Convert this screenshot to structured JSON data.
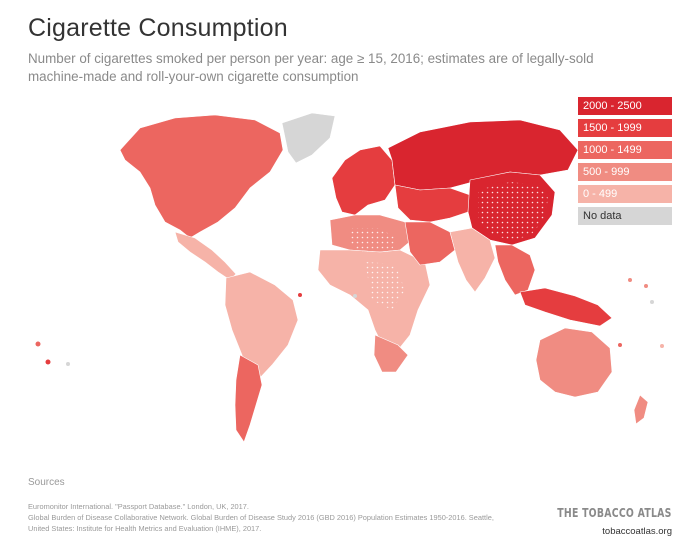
{
  "header": {
    "title": "Cigarette Consumption",
    "subtitle": "Number of cigarettes smoked per person per year: age ≥ 15, 2016; estimates are of legally-sold machine-made and roll-your-own cigarette consumption"
  },
  "legend": [
    {
      "label": "2000 - 2500",
      "color": "#d9252f"
    },
    {
      "label": "1500 - 1999",
      "color": "#e53d3f"
    },
    {
      "label": "1000 - 1499",
      "color": "#ec6660"
    },
    {
      "label": "500 - 999",
      "color": "#f08c82"
    },
    {
      "label": "0 - 499",
      "color": "#f6b3a8"
    },
    {
      "label": "No data",
      "color": "#d6d6d6"
    }
  ],
  "map": {
    "region_colors": {
      "north_america": "#ec6660",
      "greenland": "#d6d6d6",
      "central_america": "#f6b3a8",
      "south_america": "#f6b3a8",
      "argentina_chile": "#ec6660",
      "europe": "#e53d3f",
      "russia": "#d9252f",
      "central_asia": "#e53d3f",
      "china": "#d9252f",
      "north_africa": "#f08c82",
      "sub_saharan_africa": "#f6b3a8",
      "south_africa": "#f08c82",
      "middle_east": "#ec6660",
      "south_asia": "#f6b3a8",
      "southeast_asia": "#ec6660",
      "indonesia": "#e53d3f",
      "australia": "#f08c82",
      "new_zealand": "#f08c82"
    }
  },
  "sources": {
    "heading": "Sources",
    "lines": [
      "Euromonitor International. \"Passport Database.\" London, UK, 2017.",
      "Global Burden of Disease Collaborative Network. Global Burden of Disease Study 2016 (GBD 2016) Population Estimates 1950-2016. Seattle,",
      "United States: Institute for Health Metrics and Evaluation (IHME), 2017."
    ]
  },
  "brand": {
    "name": "THE TOBACCO ATLAS",
    "url": "tobaccoatlas.org"
  }
}
